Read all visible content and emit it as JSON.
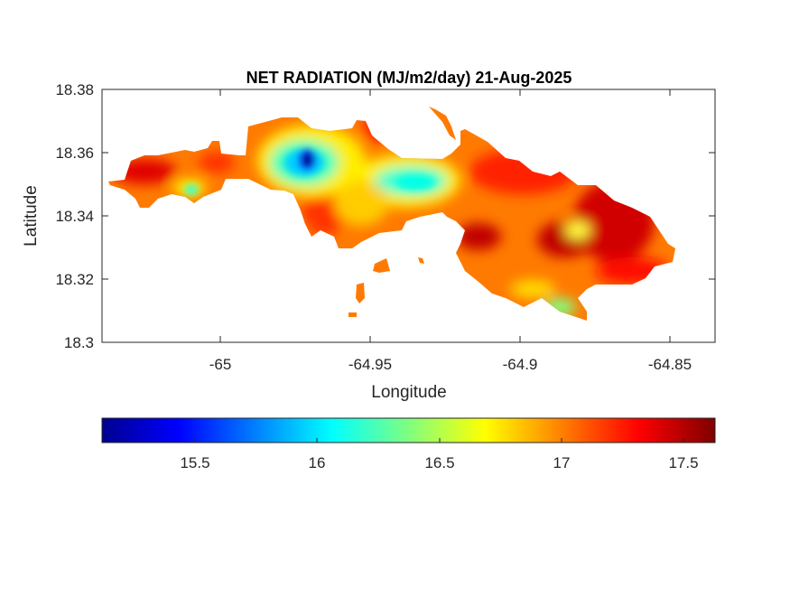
{
  "chart_data": {
    "type": "heatmap",
    "title": "NET RADIATION (MJ/m2/day) 21-Aug-2025",
    "xlabel": "Longitude",
    "ylabel": "Latitude",
    "xlim": [
      -65.0395,
      -64.835
    ],
    "ylim": [
      18.3,
      18.38
    ],
    "xticks": [
      -65,
      -64.95,
      -64.9,
      -64.85
    ],
    "xtick_labels": [
      "-65",
      "-64.95",
      "-64.9",
      "-64.85"
    ],
    "yticks": [
      18.3,
      18.32,
      18.34,
      18.36,
      18.38
    ],
    "ytick_labels": [
      "18.3",
      "18.32",
      "18.34",
      "18.36",
      "18.38"
    ],
    "grid": false,
    "colormap": "jet",
    "colorbar": {
      "location": "bottom",
      "clim": [
        15.12,
        17.63
      ],
      "ticks": [
        15.5,
        16,
        16.5,
        17,
        17.5
      ],
      "tick_labels": [
        "15.5",
        "16",
        "16.5",
        "17",
        "17.5"
      ]
    },
    "features": [
      {
        "name": "minimum",
        "lon": -64.972,
        "lat": 18.358,
        "value": 15.2
      },
      {
        "name": "central low",
        "lon": -64.943,
        "lat": 18.352,
        "value": 16.1
      },
      {
        "name": "east maximum",
        "lon": -64.869,
        "lat": 18.34,
        "value": 17.6
      },
      {
        "name": "southeast low",
        "lon": -64.885,
        "lat": 18.313,
        "value": 16.2
      }
    ]
  }
}
